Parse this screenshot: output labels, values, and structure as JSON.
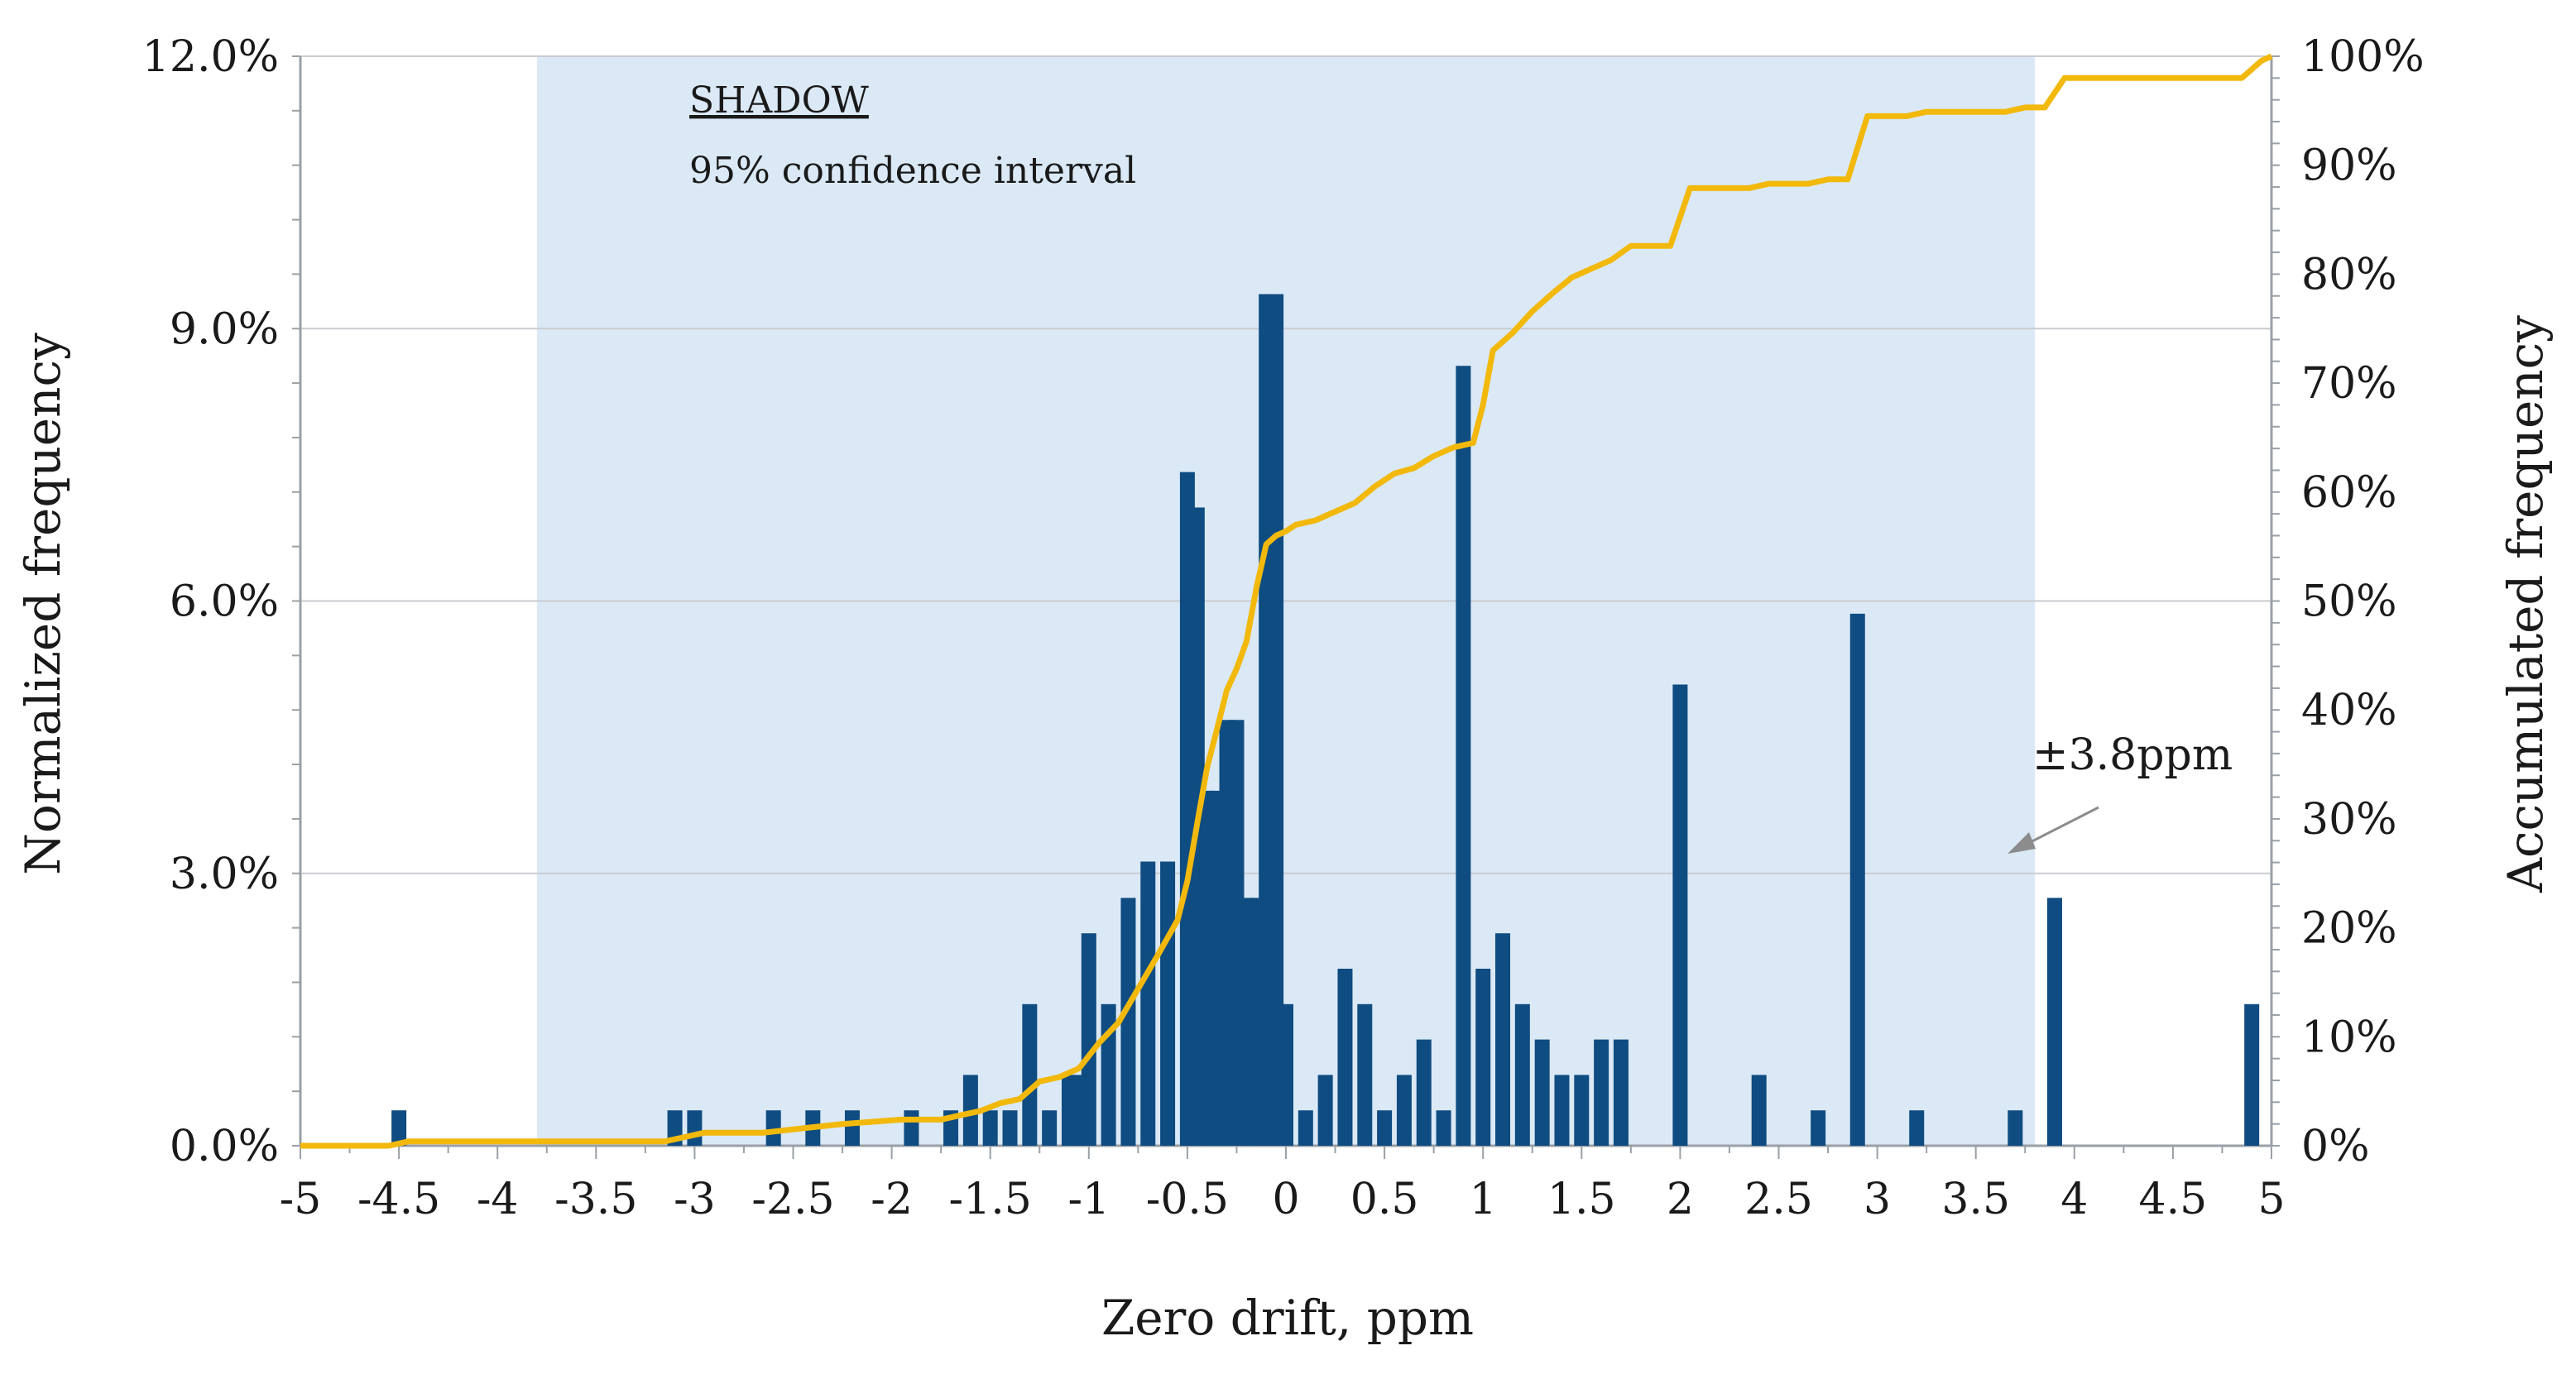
{
  "colors": {
    "bar": "#0f4c81",
    "line": "#f2b90c",
    "shade": "#dbe9f6",
    "grid": "#c9ccd1",
    "axis": "#9aa0a6",
    "text": "#1a1a1a"
  },
  "chart_data": {
    "type": "bar+line",
    "xlabel": "Zero drift, ppm",
    "ylabel_left": "Normalized frequency",
    "ylabel_right": "Accumulated frequency",
    "xlim": [
      -5,
      5
    ],
    "ylim_left": [
      0,
      12
    ],
    "ylim_right": [
      0,
      100
    ],
    "grid": true,
    "x_ticks": [
      "-5",
      "-4.5",
      "-4",
      "-3.5",
      "-3",
      "-2.5",
      "-2",
      "-1.5",
      "-1",
      "-0.5",
      "0",
      "0.5",
      "1",
      "1.5",
      "2",
      "2.5",
      "3",
      "3.5",
      "4",
      "4.5",
      "5"
    ],
    "y_left_ticks": [
      "0.0%",
      "3.0%",
      "6.0%",
      "9.0%",
      "12.0%"
    ],
    "y_right_ticks": [
      "0%",
      "10%",
      "20%",
      "30%",
      "40%",
      "50%",
      "60%",
      "70%",
      "80%",
      "90%",
      "100%"
    ],
    "shaded_region": {
      "x": [
        -3.8,
        3.8
      ],
      "label": "SHADOW",
      "sublabel": "95% confidence interval"
    },
    "annotation": {
      "text": "±3.8ppm",
      "points_to_x": 3.8
    },
    "bars": {
      "name": "Normalized frequency (%)",
      "x": [
        -4.5,
        -3.1,
        -3.0,
        -2.6,
        -2.4,
        -2.2,
        -1.9,
        -1.7,
        -1.6,
        -1.5,
        -1.4,
        -1.3,
        -1.2,
        -1.1,
        -1.05,
        -1.0,
        -0.9,
        -0.8,
        -0.7,
        -0.6,
        -0.5,
        -0.45,
        -0.4,
        -0.35,
        -0.3,
        -0.25,
        -0.2,
        -0.15,
        -0.1,
        -0.05,
        0.0,
        0.1,
        0.2,
        0.3,
        0.4,
        0.5,
        0.6,
        0.7,
        0.8,
        0.9,
        1.0,
        1.1,
        1.2,
        1.3,
        1.4,
        1.5,
        1.6,
        1.7,
        2.0,
        2.4,
        2.7,
        2.9,
        3.2,
        3.7,
        3.9,
        4.9
      ],
      "values": [
        0.39,
        0.39,
        0.39,
        0.39,
        0.39,
        0.39,
        0.39,
        0.39,
        0.78,
        0.39,
        0.39,
        1.56,
        0.39,
        0.78,
        0.78,
        2.34,
        1.56,
        2.73,
        3.13,
        3.13,
        7.42,
        7.03,
        3.91,
        3.91,
        4.69,
        4.69,
        2.73,
        2.73,
        9.38,
        9.38,
        1.56,
        0.39,
        0.78,
        1.95,
        1.56,
        0.39,
        0.78,
        1.17,
        0.39,
        8.59,
        1.95,
        2.34,
        1.56,
        1.17,
        0.78,
        0.78,
        1.17,
        1.17,
        5.08,
        0.78,
        0.39,
        5.86,
        0.39,
        0.39,
        2.73,
        1.56
      ]
    },
    "cumulative": {
      "name": "Accumulated frequency (%)",
      "x": [
        -5.0,
        -4.55,
        -4.45,
        -3.15,
        -3.05,
        -2.95,
        -2.65,
        -2.45,
        -2.25,
        -1.95,
        -1.75,
        -1.65,
        -1.55,
        -1.45,
        -1.35,
        -1.25,
        -1.15,
        -1.05,
        -0.95,
        -0.85,
        -0.75,
        -0.65,
        -0.55,
        -0.5,
        -0.45,
        -0.4,
        -0.35,
        -0.3,
        -0.25,
        -0.2,
        -0.15,
        -0.1,
        -0.05,
        0.0,
        0.05,
        0.15,
        0.25,
        0.35,
        0.45,
        0.55,
        0.65,
        0.75,
        0.85,
        0.95,
        1.0,
        1.05,
        1.15,
        1.25,
        1.35,
        1.45,
        1.55,
        1.65,
        1.75,
        1.95,
        2.05,
        2.35,
        2.45,
        2.65,
        2.75,
        2.85,
        2.95,
        3.15,
        3.25,
        3.65,
        3.75,
        3.85,
        3.95,
        4.85,
        4.95,
        5.0
      ],
      "values": [
        0.0,
        0.0,
        0.4,
        0.4,
        0.8,
        1.2,
        1.2,
        1.6,
        2.0,
        2.4,
        2.4,
        2.8,
        3.2,
        3.9,
        4.3,
        5.9,
        6.3,
        7.1,
        9.4,
        11.3,
        14.4,
        17.5,
        20.7,
        24.3,
        29.6,
        34.7,
        38.2,
        41.8,
        43.8,
        46.3,
        51.2,
        55.2,
        56.0,
        56.4,
        57.0,
        57.4,
        58.2,
        59.0,
        60.5,
        61.7,
        62.2,
        63.3,
        64.1,
        64.5,
        68.0,
        73.0,
        74.6,
        76.6,
        78.2,
        79.7,
        80.5,
        81.3,
        82.6,
        82.6,
        87.9,
        87.9,
        88.3,
        88.3,
        88.7,
        88.7,
        94.5,
        94.5,
        94.9,
        94.9,
        95.3,
        95.3,
        98.0,
        98.0,
        99.6,
        100.0
      ]
    }
  }
}
